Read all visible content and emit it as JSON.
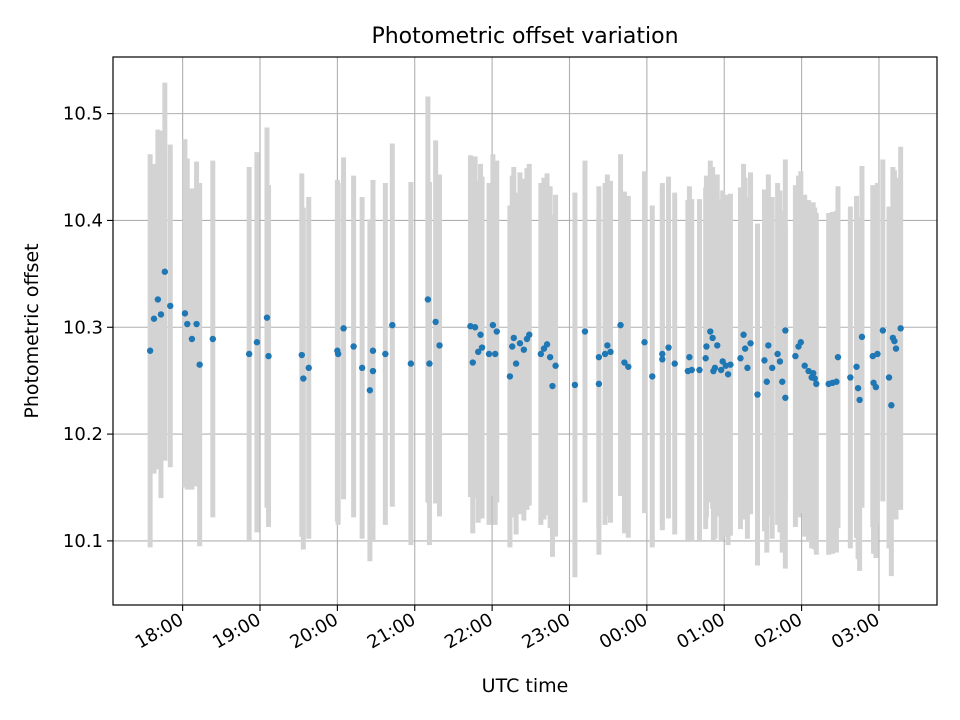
{
  "chart_data": {
    "type": "scatter",
    "title": "Photometric offset variation",
    "xlabel": "UTC time",
    "ylabel": "Photometric offset",
    "xlim": [
      17.1,
      27.75
    ],
    "ylim": [
      10.04,
      10.553
    ],
    "grid": true,
    "x_ticks": [
      {
        "value": 18,
        "label": "18:00"
      },
      {
        "value": 19,
        "label": "19:00"
      },
      {
        "value": 20,
        "label": "20:00"
      },
      {
        "value": 21,
        "label": "21:00"
      },
      {
        "value": 22,
        "label": "22:00"
      },
      {
        "value": 23,
        "label": "23:00"
      },
      {
        "value": 24,
        "label": "00:00"
      },
      {
        "value": 25,
        "label": "01:00"
      },
      {
        "value": 26,
        "label": "02:00"
      },
      {
        "value": 27,
        "label": "03:00"
      }
    ],
    "y_ticks": [
      {
        "value": 10.1,
        "label": "10.1"
      },
      {
        "value": 10.2,
        "label": "10.2"
      },
      {
        "value": 10.3,
        "label": "10.3"
      },
      {
        "value": 10.4,
        "label": "10.4"
      },
      {
        "value": 10.5,
        "label": "10.5"
      }
    ],
    "colors": {
      "points": "#1f77b4",
      "errorbars": "#d3d3d3",
      "grid": "#b0b0b0"
    },
    "points": [
      [
        17.58,
        10.278,
        0.184
      ],
      [
        17.63,
        10.308,
        0.145
      ],
      [
        17.68,
        10.326,
        0.159
      ],
      [
        17.72,
        10.312,
        0.172
      ],
      [
        17.77,
        10.352,
        0.177
      ],
      [
        17.84,
        10.32,
        0.151
      ],
      [
        18.03,
        10.313,
        0.163
      ],
      [
        18.06,
        10.303,
        0.155
      ],
      [
        18.12,
        10.289,
        0.141
      ],
      [
        18.18,
        10.303,
        0.152
      ],
      [
        18.22,
        10.265,
        0.17
      ],
      [
        18.39,
        10.289,
        0.167
      ],
      [
        18.86,
        10.275,
        0.175
      ],
      [
        18.96,
        10.286,
        0.178
      ],
      [
        19.09,
        10.309,
        0.178
      ],
      [
        19.11,
        10.273,
        0.16
      ],
      [
        19.54,
        10.274,
        0.17
      ],
      [
        19.56,
        10.252,
        0.16
      ],
      [
        19.63,
        10.262,
        0.16
      ],
      [
        20.0,
        10.278,
        0.16
      ],
      [
        20.01,
        10.275,
        0.16
      ],
      [
        20.08,
        10.299,
        0.16
      ],
      [
        20.21,
        10.282,
        0.16
      ],
      [
        20.32,
        10.262,
        0.16
      ],
      [
        20.42,
        10.241,
        0.16
      ],
      [
        20.46,
        10.278,
        0.16
      ],
      [
        20.46,
        10.259,
        0.16
      ],
      [
        20.62,
        10.275,
        0.16
      ],
      [
        20.71,
        10.302,
        0.17
      ],
      [
        20.95,
        10.266,
        0.17
      ],
      [
        21.17,
        10.326,
        0.19
      ],
      [
        21.19,
        10.266,
        0.17
      ],
      [
        21.27,
        10.305,
        0.17
      ],
      [
        21.32,
        10.283,
        0.16
      ],
      [
        21.72,
        10.301,
        0.16
      ],
      [
        21.75,
        10.267,
        0.16
      ],
      [
        21.78,
        10.3,
        0.16
      ],
      [
        21.82,
        10.277,
        0.16
      ],
      [
        21.85,
        10.293,
        0.16
      ],
      [
        21.87,
        10.281,
        0.16
      ],
      [
        21.96,
        10.275,
        0.16
      ],
      [
        22.01,
        10.302,
        0.16
      ],
      [
        22.04,
        10.275,
        0.16
      ],
      [
        22.06,
        10.296,
        0.16
      ],
      [
        22.23,
        10.254,
        0.16
      ],
      [
        22.26,
        10.282,
        0.16
      ],
      [
        22.28,
        10.29,
        0.16
      ],
      [
        22.31,
        10.266,
        0.16
      ],
      [
        22.36,
        10.285,
        0.16
      ],
      [
        22.41,
        10.279,
        0.16
      ],
      [
        22.45,
        10.289,
        0.16
      ],
      [
        22.48,
        10.293,
        0.16
      ],
      [
        22.63,
        10.275,
        0.16
      ],
      [
        22.67,
        10.28,
        0.16
      ],
      [
        22.71,
        10.284,
        0.16
      ],
      [
        22.75,
        10.272,
        0.16
      ],
      [
        22.78,
        10.245,
        0.16
      ],
      [
        22.82,
        10.264,
        0.16
      ],
      [
        23.07,
        10.246,
        0.18
      ],
      [
        23.2,
        10.296,
        0.16
      ],
      [
        23.38,
        10.247,
        0.16
      ],
      [
        23.38,
        10.272,
        0.16
      ],
      [
        23.46,
        10.275,
        0.16
      ],
      [
        23.49,
        10.283,
        0.16
      ],
      [
        23.53,
        10.277,
        0.16
      ],
      [
        23.66,
        10.302,
        0.16
      ],
      [
        23.71,
        10.267,
        0.16
      ],
      [
        23.76,
        10.263,
        0.16
      ],
      [
        23.97,
        10.286,
        0.16
      ],
      [
        24.07,
        10.254,
        0.16
      ],
      [
        24.2,
        10.275,
        0.16
      ],
      [
        24.2,
        10.27,
        0.16
      ],
      [
        24.28,
        10.281,
        0.16
      ],
      [
        24.36,
        10.266,
        0.16
      ],
      [
        24.53,
        10.259,
        0.16
      ],
      [
        24.55,
        10.272,
        0.16
      ],
      [
        24.58,
        10.26,
        0.16
      ],
      [
        24.68,
        10.26,
        0.16
      ],
      [
        24.76,
        10.271,
        0.16
      ],
      [
        24.77,
        10.282,
        0.16
      ],
      [
        24.82,
        10.296,
        0.16
      ],
      [
        24.85,
        10.29,
        0.16
      ],
      [
        24.86,
        10.259,
        0.16
      ],
      [
        24.88,
        10.262,
        0.16
      ],
      [
        24.91,
        10.283,
        0.16
      ],
      [
        24.96,
        10.26,
        0.16
      ],
      [
        24.98,
        10.268,
        0.16
      ],
      [
        25.02,
        10.264,
        0.16
      ],
      [
        25.05,
        10.256,
        0.16
      ],
      [
        25.08,
        10.265,
        0.16
      ],
      [
        25.21,
        10.271,
        0.16
      ],
      [
        25.25,
        10.293,
        0.16
      ],
      [
        25.27,
        10.28,
        0.16
      ],
      [
        25.3,
        10.262,
        0.16
      ],
      [
        25.34,
        10.285,
        0.16
      ],
      [
        25.43,
        10.237,
        0.16
      ],
      [
        25.52,
        10.269,
        0.16
      ],
      [
        25.55,
        10.249,
        0.16
      ],
      [
        25.57,
        10.283,
        0.16
      ],
      [
        25.62,
        10.262,
        0.16
      ],
      [
        25.69,
        10.275,
        0.16
      ],
      [
        25.72,
        10.268,
        0.16
      ],
      [
        25.75,
        10.249,
        0.16
      ],
      [
        25.79,
        10.234,
        0.16
      ],
      [
        25.79,
        10.297,
        0.16
      ],
      [
        25.92,
        10.273,
        0.16
      ],
      [
        25.96,
        10.282,
        0.16
      ],
      [
        25.99,
        10.286,
        0.16
      ],
      [
        26.04,
        10.264,
        0.16
      ],
      [
        26.09,
        10.259,
        0.16
      ],
      [
        26.13,
        10.253,
        0.16
      ],
      [
        26.15,
        10.257,
        0.16
      ],
      [
        26.17,
        10.252,
        0.16
      ],
      [
        26.19,
        10.247,
        0.16
      ],
      [
        26.35,
        10.247,
        0.16
      ],
      [
        26.4,
        10.248,
        0.16
      ],
      [
        26.45,
        10.249,
        0.16
      ],
      [
        26.47,
        10.272,
        0.16
      ],
      [
        26.63,
        10.253,
        0.16
      ],
      [
        26.71,
        10.263,
        0.16
      ],
      [
        26.73,
        10.243,
        0.16
      ],
      [
        26.75,
        10.232,
        0.16
      ],
      [
        26.78,
        10.291,
        0.16
      ],
      [
        26.92,
        10.273,
        0.16
      ],
      [
        26.93,
        10.248,
        0.16
      ],
      [
        26.96,
        10.244,
        0.16
      ],
      [
        26.98,
        10.275,
        0.16
      ],
      [
        27.05,
        10.297,
        0.16
      ],
      [
        27.13,
        10.253,
        0.16
      ],
      [
        27.16,
        10.227,
        0.16
      ],
      [
        27.18,
        10.29,
        0.16
      ],
      [
        27.2,
        10.287,
        0.16
      ],
      [
        27.22,
        10.28,
        0.16
      ],
      [
        27.28,
        10.299,
        0.17
      ]
    ]
  }
}
